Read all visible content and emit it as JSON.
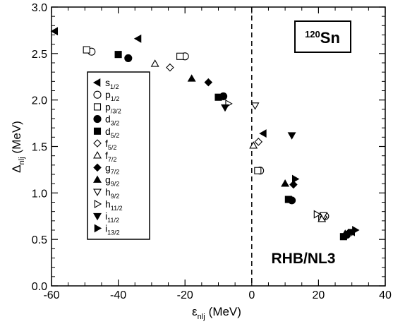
{
  "chart_data": {
    "type": "scatter",
    "title": "",
    "xlabel": {
      "main": "ε",
      "sub": "nlj",
      "unit": "(MeV)"
    },
    "ylabel": {
      "main": "Δ",
      "sub": "nlj",
      "unit": "(MeV)"
    },
    "xlim": [
      -60,
      40
    ],
    "ylim": [
      0.0,
      3.0
    ],
    "x_ticks": [
      "-60",
      "-40",
      "-20",
      "0",
      "20",
      "40"
    ],
    "y_ticks": [
      "0.0",
      "0.5",
      "1.0",
      "1.5",
      "2.0",
      "2.5",
      "3.0"
    ],
    "grid": false,
    "legend_position": "left",
    "vertical_reference_line": {
      "x": 0,
      "style": "dashed"
    },
    "annotations": {
      "nucleus_mass": "120",
      "nucleus_symbol": "Sn",
      "model": "RHB/NL3"
    },
    "series": [
      {
        "name": "s",
        "sub": "1/2",
        "marker": "triangle-left",
        "filled": true,
        "points": [
          [
            -59,
            2.74
          ],
          [
            -34,
            2.66
          ],
          [
            3.5,
            1.64
          ],
          [
            30,
            0.58
          ]
        ]
      },
      {
        "name": "p",
        "sub": "1/2",
        "marker": "circle",
        "filled": false,
        "points": [
          [
            -48,
            2.52
          ],
          [
            -20,
            2.47
          ],
          [
            2.5,
            1.24
          ],
          [
            22,
            0.75
          ]
        ]
      },
      {
        "name": "p",
        "sub": "/3/2",
        "marker": "square",
        "filled": false,
        "points": [
          [
            -49.5,
            2.54
          ],
          [
            -21.5,
            2.47
          ],
          [
            1.8,
            1.24
          ],
          [
            21,
            0.73
          ]
        ]
      },
      {
        "name": "d",
        "sub": "3/2",
        "marker": "circle",
        "filled": true,
        "points": [
          [
            -37,
            2.45
          ],
          [
            -8.5,
            2.04
          ],
          [
            12,
            0.92
          ],
          [
            28.5,
            0.55
          ]
        ]
      },
      {
        "name": "d",
        "sub": "5/2",
        "marker": "square",
        "filled": true,
        "points": [
          [
            -40,
            2.49
          ],
          [
            -10,
            2.03
          ],
          [
            11,
            0.93
          ],
          [
            27.5,
            0.53
          ]
        ]
      },
      {
        "name": "f",
        "sub": "5/2",
        "marker": "diamond",
        "filled": false,
        "points": [
          [
            -24.5,
            2.35
          ],
          [
            2,
            1.55
          ],
          [
            21.5,
            0.74
          ]
        ]
      },
      {
        "name": "f",
        "sub": "7/2",
        "marker": "triangle-up",
        "filled": false,
        "points": [
          [
            -29,
            2.39
          ],
          [
            0.5,
            1.51
          ],
          [
            21,
            0.72
          ]
        ]
      },
      {
        "name": "g",
        "sub": "7/2",
        "marker": "diamond",
        "filled": true,
        "points": [
          [
            -13,
            2.19
          ],
          [
            12.5,
            1.09
          ],
          [
            29,
            0.57
          ]
        ]
      },
      {
        "name": "g",
        "sub": "9/2",
        "marker": "triangle-up",
        "filled": true,
        "points": [
          [
            -18,
            2.23
          ],
          [
            10,
            1.1
          ],
          [
            28,
            0.56
          ]
        ]
      },
      {
        "name": "h",
        "sub": "9/2",
        "marker": "triangle-down",
        "filled": false,
        "points": [
          [
            1,
            1.94
          ],
          [
            21.5,
            0.76
          ]
        ]
      },
      {
        "name": "h",
        "sub": "11/2",
        "marker": "triangle-right",
        "filled": false,
        "points": [
          [
            -7,
            1.96
          ],
          [
            19.5,
            0.77
          ]
        ]
      },
      {
        "name": "i",
        "sub": "11/2",
        "marker": "triangle-down",
        "filled": true,
        "points": [
          [
            -8,
            1.92
          ],
          [
            12,
            1.62
          ],
          [
            30,
            0.58
          ]
        ]
      },
      {
        "name": "i",
        "sub": "13/2",
        "marker": "triangle-right",
        "filled": true,
        "points": [
          [
            13,
            1.15
          ],
          [
            31,
            0.6
          ]
        ]
      }
    ]
  }
}
